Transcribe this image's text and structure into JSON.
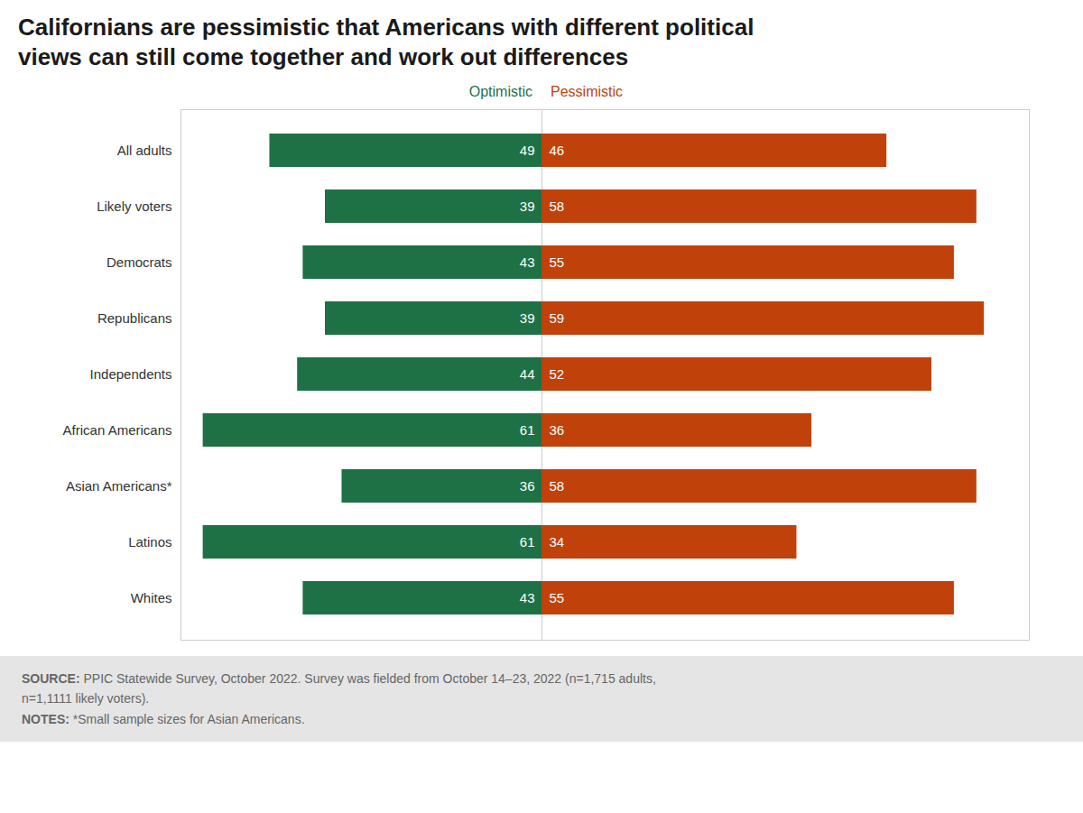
{
  "chart_data": {
    "type": "bar",
    "orientation": "horizontal",
    "title": "Californians are pessimistic that Americans with different political\nviews can still come together and work out differences",
    "categories": [
      "All adults",
      "Likely voters",
      "Democrats",
      "Republicans",
      "Independents",
      "African Americans",
      "Asian Americans*",
      "Latinos",
      "Whites"
    ],
    "series": [
      {
        "name": "Optimistic",
        "color": "#1e7145",
        "values": [
          49,
          39,
          43,
          39,
          44,
          61,
          36,
          61,
          43
        ]
      },
      {
        "name": "Pessimistic",
        "color": "#c0420a",
        "values": [
          46,
          58,
          55,
          59,
          52,
          36,
          58,
          34,
          55
        ]
      }
    ],
    "xlim": [
      0,
      65
    ],
    "data_labels": true,
    "tick_labels": "y",
    "legend": "top",
    "grid": false,
    "annotations": [
      "SOURCE: PPIC Statewide Survey, October 2022. Survey was fielded from October 14–23, 2022 (n=1,715 adults,",
      "n=1,1111 likely voters).",
      "NOTES: *Small sample sizes for Asian Americans."
    ]
  }
}
